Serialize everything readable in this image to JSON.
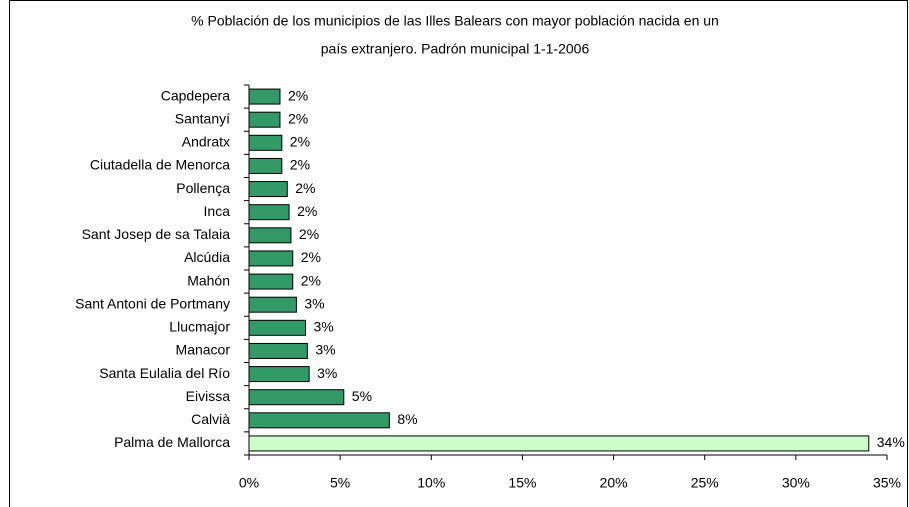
{
  "chart_data": {
    "type": "barh",
    "title": [
      "% Población de los municipios de las Illes Balears con mayor población nacida en un",
      "país extranjero. Padrón municipal 1-1-2006"
    ],
    "categories": [
      "Capdepera",
      "Santanyí",
      "Andratx",
      "Ciutadella de Menorca",
      "Pollença",
      "Inca",
      "Sant Josep de sa Talaia",
      "Alcúdia",
      "Mahón",
      "Sant Antoni de Portmany",
      "Llucmajor",
      "Manacor",
      "Santa Eulalia del Río",
      "Eivissa",
      "Calvià",
      "Palma de Mallorca"
    ],
    "values": [
      1.7,
      1.7,
      1.8,
      1.8,
      2.1,
      2.2,
      2.3,
      2.4,
      2.4,
      2.6,
      3.1,
      3.2,
      3.3,
      5.2,
      7.7,
      34.0
    ],
    "value_labels": [
      "2%",
      "2%",
      "2%",
      "2%",
      "2%",
      "2%",
      "2%",
      "2%",
      "2%",
      "3%",
      "3%",
      "3%",
      "3%",
      "5%",
      "8%",
      "34%"
    ],
    "colors": [
      "#339966",
      "#339966",
      "#339966",
      "#339966",
      "#339966",
      "#339966",
      "#339966",
      "#339966",
      "#339966",
      "#339966",
      "#339966",
      "#339966",
      "#339966",
      "#339966",
      "#339966",
      "#ccffcc"
    ],
    "xlim": [
      0,
      35
    ],
    "xticks": [
      {
        "value": 0,
        "label": "0%"
      },
      {
        "value": 5,
        "label": "5%"
      },
      {
        "value": 10,
        "label": "10%"
      },
      {
        "value": 15,
        "label": "15%"
      },
      {
        "value": 20,
        "label": "20%"
      },
      {
        "value": 25,
        "label": "25%"
      },
      {
        "value": 30,
        "label": "30%"
      },
      {
        "value": 35,
        "label": "35%"
      }
    ],
    "grid": false
  }
}
